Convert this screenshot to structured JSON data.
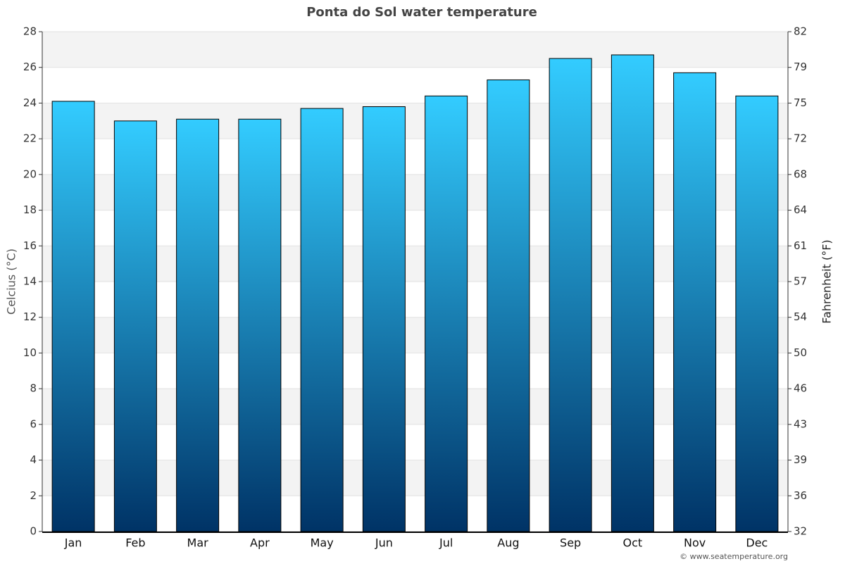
{
  "chart_data": {
    "type": "bar",
    "title": "Ponta do Sol water temperature",
    "categories": [
      "Jan",
      "Feb",
      "Mar",
      "Apr",
      "May",
      "Jun",
      "Jul",
      "Aug",
      "Sep",
      "Oct",
      "Nov",
      "Dec"
    ],
    "values": [
      24.1,
      23.0,
      23.1,
      23.1,
      23.7,
      23.8,
      24.4,
      25.3,
      26.5,
      26.7,
      25.7,
      24.4
    ],
    "color": [
      "#33ccff",
      "#003366"
    ],
    "y_label": "Celcius (°C)",
    "y2_label": "Fahrenheit (°F)",
    "ylim": [
      0,
      28
    ],
    "yticks": [
      0,
      2,
      4,
      6,
      8,
      10,
      12,
      14,
      16,
      18,
      20,
      22,
      24,
      26,
      28
    ],
    "y2lim": [
      32,
      82.4
    ],
    "y2ticks": [
      32,
      {
        "value": 35.6,
        "label": "36"
      },
      {
        "value": 39.2,
        "label": "39"
      },
      {
        "value": 42.8,
        "label": "43"
      },
      {
        "value": 46.4,
        "label": "46"
      },
      50,
      {
        "value": 53.6,
        "label": "54"
      },
      {
        "value": 57.2,
        "label": "57"
      },
      {
        "value": 60.8,
        "label": "61"
      },
      {
        "value": 64.4,
        "label": "64"
      },
      68,
      {
        "value": 71.6,
        "label": "72"
      },
      {
        "value": 75.2,
        "label": "75"
      },
      {
        "value": 78.8,
        "label": "79"
      },
      {
        "value": 82.4,
        "label": "82"
      }
    ],
    "grid": true,
    "source": "© www.seatemperature.org"
  }
}
